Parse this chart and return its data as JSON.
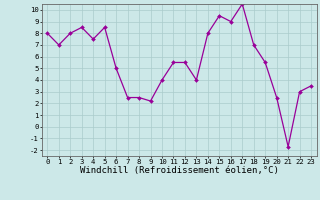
{
  "x": [
    0,
    1,
    2,
    3,
    4,
    5,
    6,
    7,
    8,
    9,
    10,
    11,
    12,
    13,
    14,
    15,
    16,
    17,
    18,
    19,
    20,
    21,
    22,
    23
  ],
  "y": [
    8,
    7,
    8,
    8.5,
    7.5,
    8.5,
    5,
    2.5,
    2.5,
    2.2,
    4,
    5.5,
    5.5,
    4,
    8,
    9.5,
    9,
    10.5,
    7,
    5.5,
    2.5,
    -1.7,
    3,
    3.5
  ],
  "line_color": "#990099",
  "marker_color": "#990099",
  "bg_color": "#cce8e8",
  "grid_color": "#aacccc",
  "xlabel": "Windchill (Refroidissement éolien,°C)",
  "xlim": [
    -0.5,
    23.5
  ],
  "ylim": [
    -2.5,
    10.5
  ],
  "yticks": [
    -2,
    -1,
    0,
    1,
    2,
    3,
    4,
    5,
    6,
    7,
    8,
    9,
    10
  ],
  "xticks": [
    0,
    1,
    2,
    3,
    4,
    5,
    6,
    7,
    8,
    9,
    10,
    11,
    12,
    13,
    14,
    15,
    16,
    17,
    18,
    19,
    20,
    21,
    22,
    23
  ],
  "tick_fontsize": 5.2,
  "label_fontsize": 6.5
}
